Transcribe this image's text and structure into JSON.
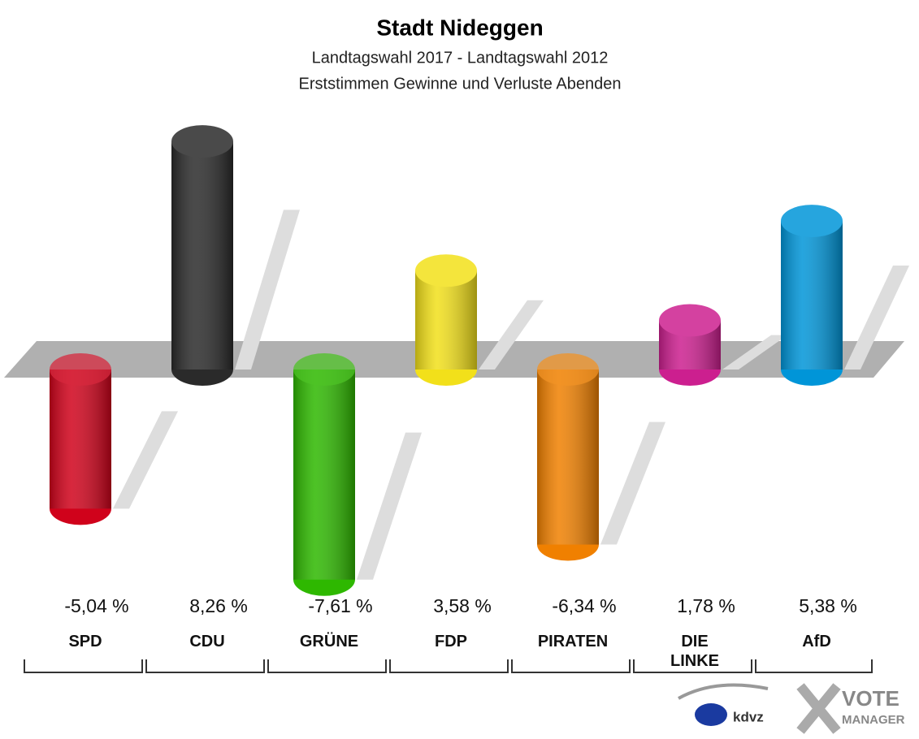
{
  "chart_data": {
    "type": "bar",
    "title": "Stadt Nideggen",
    "subtitle": "Landtagswahl 2017 - Landtagswahl 2012",
    "subtitle2": "Erststimmen Gewinne und Verluste Abenden",
    "categories": [
      "SPD",
      "CDU",
      "GRÜNE",
      "FDP",
      "PIRATEN",
      "DIE\nLINKE",
      "AfD"
    ],
    "values": [
      -5.04,
      8.26,
      -7.61,
      3.58,
      -6.34,
      1.78,
      5.38
    ],
    "value_labels": [
      "-5,04 %",
      "8,26 %",
      "-7,61 %",
      "3,58 %",
      "-6,34 %",
      "1,78 %",
      "5,38 %"
    ],
    "colors": [
      "#d0021b",
      "#2a2a2a",
      "#2eb800",
      "#f2e01a",
      "#f08000",
      "#cc1f8f",
      "#0095d8"
    ],
    "ylim": [
      -9,
      10
    ]
  },
  "logo": {
    "left": "kdvz",
    "right_top": "VOTE",
    "right_bottom": "MANAGER"
  }
}
